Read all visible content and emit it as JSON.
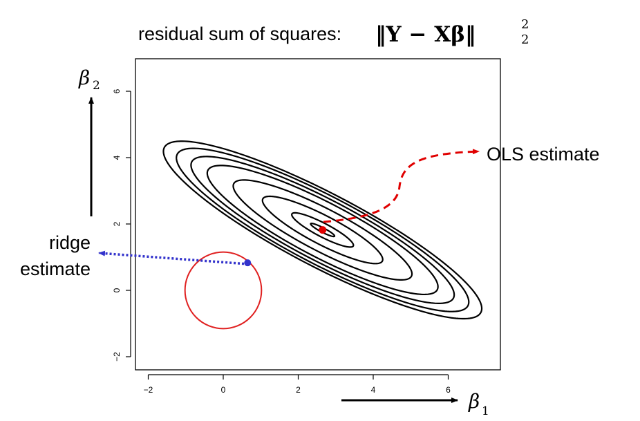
{
  "chart_data": {
    "type": "contour",
    "title_text": "residual sum of squares:",
    "title_formula": "‖Y − Xβ‖",
    "title_superscript": "2",
    "title_subscript": "2",
    "x_axis_symbol": "β",
    "x_axis_subscript": "1",
    "y_axis_symbol": "β",
    "y_axis_subscript": "2",
    "xlim": [
      -2.5,
      7.3
    ],
    "ylim": [
      -2.3,
      7.3
    ],
    "x_ticks": [
      -2,
      0,
      2,
      4,
      6
    ],
    "y_ticks": [
      -2,
      0,
      2,
      4,
      6
    ],
    "x_tick_labels": [
      "−2",
      "0",
      "2",
      "4",
      "6"
    ],
    "y_tick_labels": [
      "−2",
      "0",
      "2",
      "4",
      "6"
    ],
    "grid": false,
    "ols_estimate": {
      "x": 2.65,
      "y": 1.82,
      "label": "OLS estimate",
      "color": "#e00000"
    },
    "ridge_estimate": {
      "x": 0.65,
      "y": 0.83,
      "label_line1": "ridge",
      "label_line2": "estimate",
      "color": "#3333cc"
    },
    "constraint_circle": {
      "center": [
        0,
        0
      ],
      "radius": 1.02,
      "color": "#e02020"
    },
    "contours": {
      "center": [
        2.65,
        1.82
      ],
      "angle_deg": -30.8,
      "levels": [
        {
          "a": 0.37,
          "b": 0.065
        },
        {
          "a": 0.95,
          "b": 0.2
        },
        {
          "a": 1.85,
          "b": 0.42
        },
        {
          "a": 2.75,
          "b": 0.62
        },
        {
          "a": 3.55,
          "b": 0.8
        },
        {
          "a": 4.05,
          "b": 0.9
        },
        {
          "a": 4.5,
          "b": 1.0
        },
        {
          "a": 4.9,
          "b": 1.08
        }
      ]
    }
  }
}
